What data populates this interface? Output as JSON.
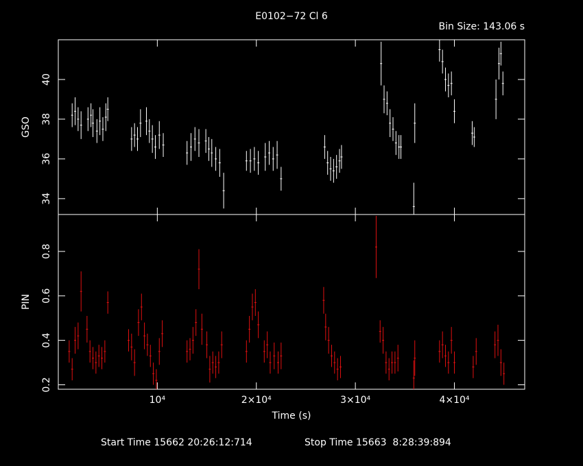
{
  "chart_data": [
    {
      "type": "errorbar",
      "title": "E0102−72 Cl 6",
      "subtitle": "Bin Size: 143.06 s",
      "ylabel": "GSO",
      "ylim": [
        33.2,
        42.0
      ],
      "yticks": [
        34,
        36,
        38,
        40
      ],
      "series": [
        {
          "color": "#ffffff",
          "x": [
            1400,
            1700,
            2000,
            2300,
            3000,
            3300,
            3500,
            3900,
            4200,
            4500,
            4800,
            5000,
            7400,
            7700,
            8000,
            8300,
            8900,
            9200,
            9500,
            9800,
            10200,
            10600,
            13000,
            13400,
            13800,
            14200,
            14900,
            15200,
            15500,
            15900,
            16300,
            16700,
            19000,
            19400,
            19800,
            20200,
            20900,
            21300,
            21700,
            22100,
            22500,
            26900,
            27200,
            27500,
            27800,
            28100,
            28400,
            28600,
            32600,
            32900,
            33200,
            33500,
            33800,
            34100,
            34400,
            34600,
            35900,
            36000,
            38500,
            38800,
            39100,
            39400,
            39700,
            40000,
            41800,
            42000,
            44200,
            44500,
            44700,
            44900
          ],
          "values": [
            38.2,
            38.4,
            38.0,
            37.7,
            38.0,
            38.2,
            37.8,
            37.4,
            37.9,
            37.5,
            38.1,
            38.5,
            37.0,
            37.2,
            37.0,
            37.8,
            37.9,
            37.4,
            37.0,
            36.6,
            37.2,
            36.7,
            36.3,
            36.6,
            37.0,
            36.8,
            36.9,
            36.5,
            36.3,
            36.0,
            35.8,
            34.4,
            35.9,
            35.9,
            36.0,
            35.8,
            36.1,
            36.3,
            36.0,
            36.2,
            35.0,
            36.6,
            35.8,
            35.5,
            35.4,
            35.6,
            35.9,
            36.1,
            40.8,
            39.0,
            38.8,
            37.8,
            37.5,
            36.8,
            36.6,
            36.6,
            33.6,
            37.8,
            41.5,
            40.9,
            40.0,
            39.7,
            39.8,
            38.4,
            37.3,
            37.1,
            39.0,
            40.8,
            41.3,
            39.8
          ],
          "errors": [
            0.6,
            0.7,
            0.6,
            0.7,
            0.6,
            0.6,
            0.7,
            0.6,
            0.7,
            0.6,
            0.7,
            0.6,
            0.6,
            0.6,
            0.6,
            0.7,
            0.7,
            0.6,
            0.7,
            0.6,
            0.7,
            0.6,
            0.6,
            0.7,
            0.6,
            0.7,
            0.6,
            0.6,
            0.7,
            0.6,
            0.7,
            0.9,
            0.5,
            0.6,
            0.6,
            0.6,
            0.7,
            0.6,
            0.6,
            0.7,
            0.6,
            0.6,
            0.6,
            0.6,
            0.6,
            0.6,
            0.6,
            0.6,
            1.1,
            0.7,
            0.6,
            0.7,
            0.6,
            0.6,
            0.6,
            0.6,
            1.2,
            1.0,
            0.6,
            0.6,
            0.6,
            0.6,
            0.6,
            0.6,
            0.6,
            0.5,
            1.0,
            0.8,
            0.6,
            0.6
          ]
        }
      ]
    },
    {
      "type": "errorbar",
      "ylabel": "PIN",
      "xlabel": "Time (s)",
      "xlim": [
        0,
        47100
      ],
      "xticks": [
        {
          "value": 10000,
          "label": "10⁴"
        },
        {
          "value": 20000,
          "label": "2×10⁴"
        },
        {
          "value": 30000,
          "label": "3×10⁴"
        },
        {
          "value": 40000,
          "label": "4×10⁴"
        }
      ],
      "ylim": [
        0.18,
        0.966
      ],
      "yticks": [
        0.2,
        0.4,
        0.6,
        0.8
      ],
      "notes": [
        "Start Time 15662 20:26:12:714",
        "Stop Time 15663  8:28:39:894"
      ],
      "series": [
        {
          "color": "#e01010",
          "x": [
            1100,
            1400,
            1700,
            2000,
            2300,
            2900,
            3200,
            3500,
            3800,
            4100,
            4400,
            4700,
            5000,
            7100,
            7400,
            7700,
            8100,
            8400,
            8700,
            9000,
            9300,
            9600,
            9900,
            10200,
            10500,
            13000,
            13300,
            13600,
            13900,
            14200,
            14500,
            15000,
            15300,
            15600,
            15900,
            16200,
            16500,
            19000,
            19300,
            19600,
            19900,
            20200,
            20800,
            21100,
            21400,
            21800,
            22200,
            22500,
            26800,
            27000,
            27300,
            27600,
            27900,
            28200,
            28500,
            32100,
            32500,
            32800,
            33100,
            33400,
            33700,
            34000,
            34300,
            35900,
            36000,
            38500,
            38800,
            39100,
            39400,
            39700,
            40000,
            41900,
            42200,
            44100,
            44400,
            44700,
            45000
          ],
          "values": [
            0.35,
            0.27,
            0.4,
            0.42,
            0.62,
            0.45,
            0.35,
            0.32,
            0.3,
            0.33,
            0.32,
            0.35,
            0.57,
            0.4,
            0.37,
            0.3,
            0.48,
            0.55,
            0.42,
            0.38,
            0.33,
            0.25,
            0.22,
            0.35,
            0.43,
            0.35,
            0.36,
            0.4,
            0.48,
            0.72,
            0.45,
            0.38,
            0.27,
            0.3,
            0.28,
            0.3,
            0.38,
            0.35,
            0.45,
            0.55,
            0.57,
            0.47,
            0.35,
            0.38,
            0.3,
            0.33,
            0.3,
            0.33,
            0.58,
            0.46,
            0.4,
            0.33,
            0.3,
            0.27,
            0.28,
            0.82,
            0.44,
            0.4,
            0.3,
            0.27,
            0.3,
            0.3,
            0.32,
            0.23,
            0.32,
            0.35,
            0.38,
            0.33,
            0.3,
            0.4,
            0.3,
            0.28,
            0.35,
            0.38,
            0.4,
            0.3,
            0.25
          ],
          "errors": [
            0.05,
            0.05,
            0.06,
            0.06,
            0.09,
            0.06,
            0.05,
            0.05,
            0.05,
            0.05,
            0.05,
            0.05,
            0.05,
            0.05,
            0.06,
            0.06,
            0.06,
            0.06,
            0.06,
            0.05,
            0.05,
            0.05,
            0.05,
            0.06,
            0.06,
            0.05,
            0.05,
            0.06,
            0.06,
            0.09,
            0.07,
            0.06,
            0.06,
            0.05,
            0.05,
            0.05,
            0.06,
            0.05,
            0.06,
            0.06,
            0.06,
            0.06,
            0.05,
            0.06,
            0.05,
            0.06,
            0.05,
            0.06,
            0.06,
            0.06,
            0.06,
            0.05,
            0.05,
            0.05,
            0.05,
            0.14,
            0.05,
            0.06,
            0.05,
            0.05,
            0.05,
            0.05,
            0.06,
            0.08,
            0.08,
            0.05,
            0.06,
            0.05,
            0.05,
            0.06,
            0.05,
            0.05,
            0.06,
            0.06,
            0.07,
            0.06,
            0.05
          ]
        }
      ]
    }
  ]
}
